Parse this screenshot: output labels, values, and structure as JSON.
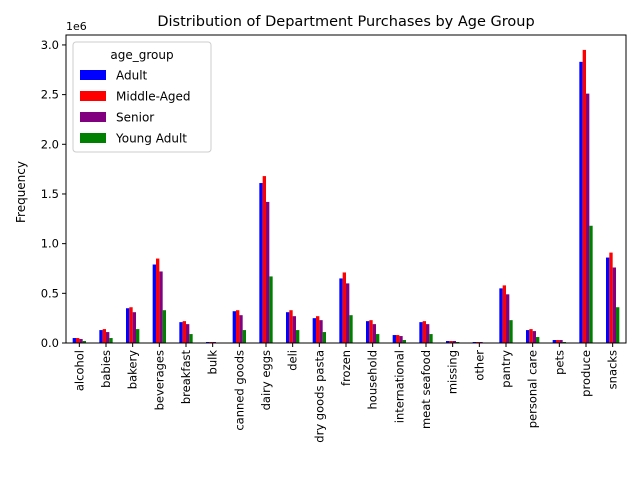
{
  "chart_data": {
    "type": "bar",
    "title": "Distribution of Department Purchases by Age Group",
    "xlabel": "",
    "ylabel": "Frequency",
    "y_offset_label": "1e6",
    "ylim": [
      0,
      3.1
    ],
    "yticks": [
      "0.0",
      "0.5",
      "1.0",
      "1.5",
      "2.0",
      "2.5",
      "3.0"
    ],
    "grid": false,
    "legend": {
      "title": "age_group",
      "placement": "top-left"
    },
    "categories": [
      "alcohol",
      "babies",
      "bakery",
      "beverages",
      "breakfast",
      "bulk",
      "canned goods",
      "dairy eggs",
      "deli",
      "dry goods pasta",
      "frozen",
      "household",
      "international",
      "meat seafood",
      "missing",
      "other",
      "pantry",
      "personal care",
      "pets",
      "produce",
      "snacks"
    ],
    "series": [
      {
        "name": "Adult",
        "color": "#0000ff",
        "values": [
          0.05,
          0.13,
          0.35,
          0.79,
          0.21,
          0.01,
          0.32,
          1.61,
          0.31,
          0.25,
          0.65,
          0.22,
          0.08,
          0.21,
          0.02,
          0.01,
          0.55,
          0.13,
          0.03,
          2.83,
          0.86
        ]
      },
      {
        "name": "Middle-Aged",
        "color": "#ff0000",
        "values": [
          0.05,
          0.14,
          0.36,
          0.85,
          0.22,
          0.01,
          0.33,
          1.68,
          0.33,
          0.27,
          0.71,
          0.23,
          0.08,
          0.22,
          0.02,
          0.01,
          0.58,
          0.14,
          0.03,
          2.95,
          0.91
        ]
      },
      {
        "name": "Senior",
        "color": "#800080",
        "values": [
          0.04,
          0.11,
          0.31,
          0.72,
          0.19,
          0.01,
          0.28,
          1.42,
          0.27,
          0.23,
          0.6,
          0.19,
          0.07,
          0.19,
          0.02,
          0.01,
          0.49,
          0.12,
          0.03,
          2.51,
          0.76
        ]
      },
      {
        "name": "Young Adult",
        "color": "#008000",
        "values": [
          0.02,
          0.05,
          0.14,
          0.33,
          0.09,
          0.005,
          0.13,
          0.67,
          0.13,
          0.11,
          0.28,
          0.09,
          0.03,
          0.09,
          0.01,
          0.005,
          0.23,
          0.06,
          0.01,
          1.18,
          0.36
        ]
      }
    ]
  }
}
